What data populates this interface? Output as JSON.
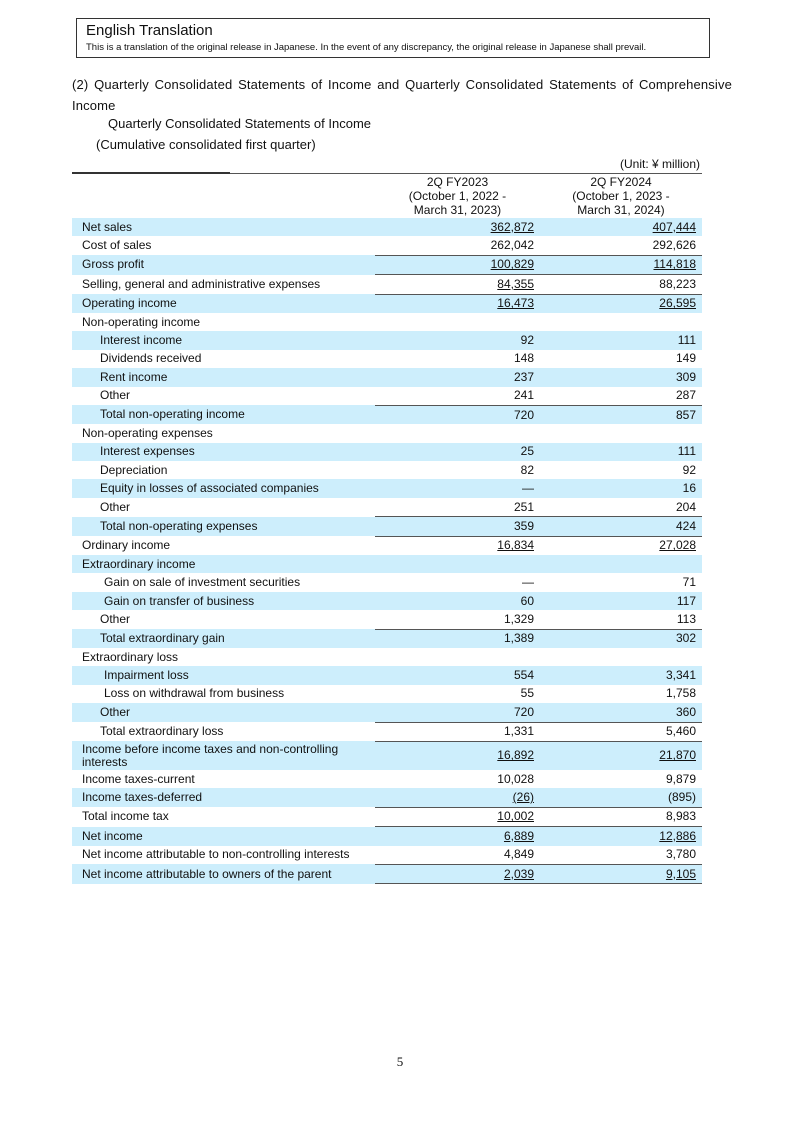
{
  "notice": {
    "title": "English Translation",
    "text": "This is a translation of the original release in Japanese. In the event of any discrepancy, the original release in Japanese shall prevail."
  },
  "heading": "(2) Quarterly Consolidated Statements of Income and Quarterly Consolidated Statements of Comprehensive Income",
  "subheading": "Quarterly Consolidated Statements of Income",
  "period": "(Cumulative consolidated first quarter)",
  "unit": "(Unit: ¥ million)",
  "columns": [
    {
      "l1": "2Q FY2023",
      "l2": "(October 1, 2022 -",
      "l3": "March 31, 2023)"
    },
    {
      "l1": "2Q FY2024",
      "l2": "(October 1, 2023 -",
      "l3": "March 31, 2024)"
    }
  ],
  "rows": [
    {
      "label": "Net sales",
      "v1": "362,872",
      "v2": "407,444"
    },
    {
      "label": "Cost of sales",
      "v1": "262,042",
      "v2": "292,626"
    },
    {
      "label": "Gross profit",
      "v1": "100,829",
      "v2": "114,818"
    },
    {
      "label": "Selling, general and administrative expenses",
      "v1": "84,355",
      "v2": "88,223"
    },
    {
      "label": "Operating income",
      "v1": "16,473",
      "v2": "26,595"
    },
    {
      "label": "Non-operating income",
      "v1": "",
      "v2": ""
    },
    {
      "label": "Interest income",
      "v1": "92",
      "v2": "111"
    },
    {
      "label": "Dividends received",
      "v1": "148",
      "v2": "149"
    },
    {
      "label": "Rent income",
      "v1": "237",
      "v2": "309"
    },
    {
      "label": "Other",
      "v1": "241",
      "v2": "287"
    },
    {
      "label": "Total non-operating income",
      "v1": "720",
      "v2": "857"
    },
    {
      "label": "Non-operating expenses",
      "v1": "",
      "v2": ""
    },
    {
      "label": "Interest expenses",
      "v1": "25",
      "v2": "111"
    },
    {
      "label": "Depreciation",
      "v1": "82",
      "v2": "92"
    },
    {
      "label": "Equity in losses of associated companies",
      "v1": "—",
      "v2": "16"
    },
    {
      "label": "Other",
      "v1": "251",
      "v2": "204"
    },
    {
      "label": "Total non-operating expenses",
      "v1": "359",
      "v2": "424"
    },
    {
      "label": "Ordinary income",
      "v1": "16,834",
      "v2": "27,028"
    },
    {
      "label": "Extraordinary income",
      "v1": "",
      "v2": ""
    },
    {
      "label": "Gain on sale of investment securities",
      "v1": "—",
      "v2": "71"
    },
    {
      "label": "Gain on transfer of business",
      "v1": "60",
      "v2": "117"
    },
    {
      "label": "Other",
      "v1": "1,329",
      "v2": "113"
    },
    {
      "label": "Total extraordinary gain",
      "v1": "1,389",
      "v2": "302"
    },
    {
      "label": "Extraordinary loss",
      "v1": "",
      "v2": ""
    },
    {
      "label": "Impairment loss",
      "v1": "554",
      "v2": "3,341"
    },
    {
      "label": "Loss on withdrawal from business",
      "v1": "55",
      "v2": "1,758"
    },
    {
      "label": "Other",
      "v1": "720",
      "v2": "360"
    },
    {
      "label": "Total extraordinary loss",
      "v1": "1,331",
      "v2": "5,460"
    },
    {
      "label": "Income before income taxes and non-controlling interests",
      "v1": "16,892",
      "v2": "21,870"
    },
    {
      "label": "Income taxes-current",
      "v1": "10,028",
      "v2": "9,879"
    },
    {
      "label": "Income taxes-deferred",
      "v1": "(26)",
      "v2": "(895)"
    },
    {
      "label": "Total income tax",
      "v1": "10,002",
      "v2": "8,983"
    },
    {
      "label": "Net income",
      "v1": "6,889",
      "v2": "12,886"
    },
    {
      "label": "Net income attributable to non-controlling interests",
      "v1": "4,849",
      "v2": "3,780"
    },
    {
      "label": "Net income attributable to owners of the parent",
      "v1": "2,039",
      "v2": "9,105"
    }
  ],
  "page_number": "5"
}
